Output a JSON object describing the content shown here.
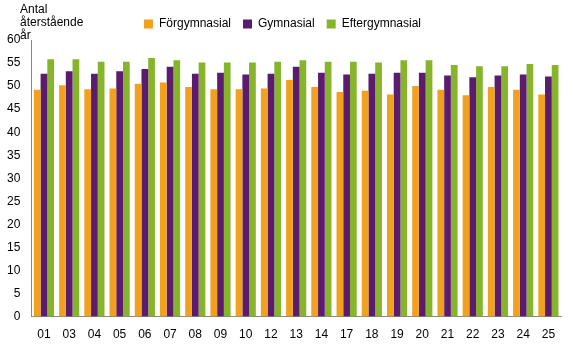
{
  "chart_data": {
    "type": "bar",
    "y_label": "Antal återstående år",
    "categories": [
      "01",
      "03",
      "04",
      "05",
      "06",
      "07",
      "08",
      "09",
      "10",
      "12",
      "13",
      "14",
      "17",
      "18",
      "19",
      "20",
      "21",
      "22",
      "23",
      "24",
      "25"
    ],
    "series": [
      {
        "name": "Förgymnasial",
        "color": "#f2a11f",
        "values": [
          49.2,
          50.2,
          49.3,
          49.5,
          50.5,
          50.8,
          49.8,
          49.3,
          49.3,
          49.5,
          51.3,
          49.8,
          48.7,
          49.0,
          48.2,
          50.0,
          49.2,
          48.0,
          49.8,
          49.2,
          48.2
        ]
      },
      {
        "name": "Gymnasial",
        "color": "#5b1c6e",
        "values": [
          52.7,
          53.2,
          52.7,
          53.2,
          53.7,
          54.2,
          52.7,
          52.9,
          52.5,
          52.7,
          54.2,
          52.9,
          52.5,
          52.7,
          52.9,
          52.9,
          52.3,
          51.9,
          52.3,
          52.5,
          52.1
        ]
      },
      {
        "name": "Eftergymnasial",
        "color": "#86b42a",
        "values": [
          55.8,
          55.8,
          55.3,
          55.3,
          56.1,
          55.6,
          55.1,
          55.1,
          55.1,
          55.3,
          55.6,
          55.3,
          55.3,
          55.1,
          55.6,
          55.6,
          54.6,
          54.3,
          54.3,
          54.8,
          54.6
        ]
      }
    ],
    "ylim": [
      0,
      60
    ],
    "yticks": [
      0,
      5,
      10,
      15,
      20,
      25,
      30,
      35,
      40,
      45,
      50,
      55,
      60
    ],
    "grid": false,
    "legend": "top"
  }
}
